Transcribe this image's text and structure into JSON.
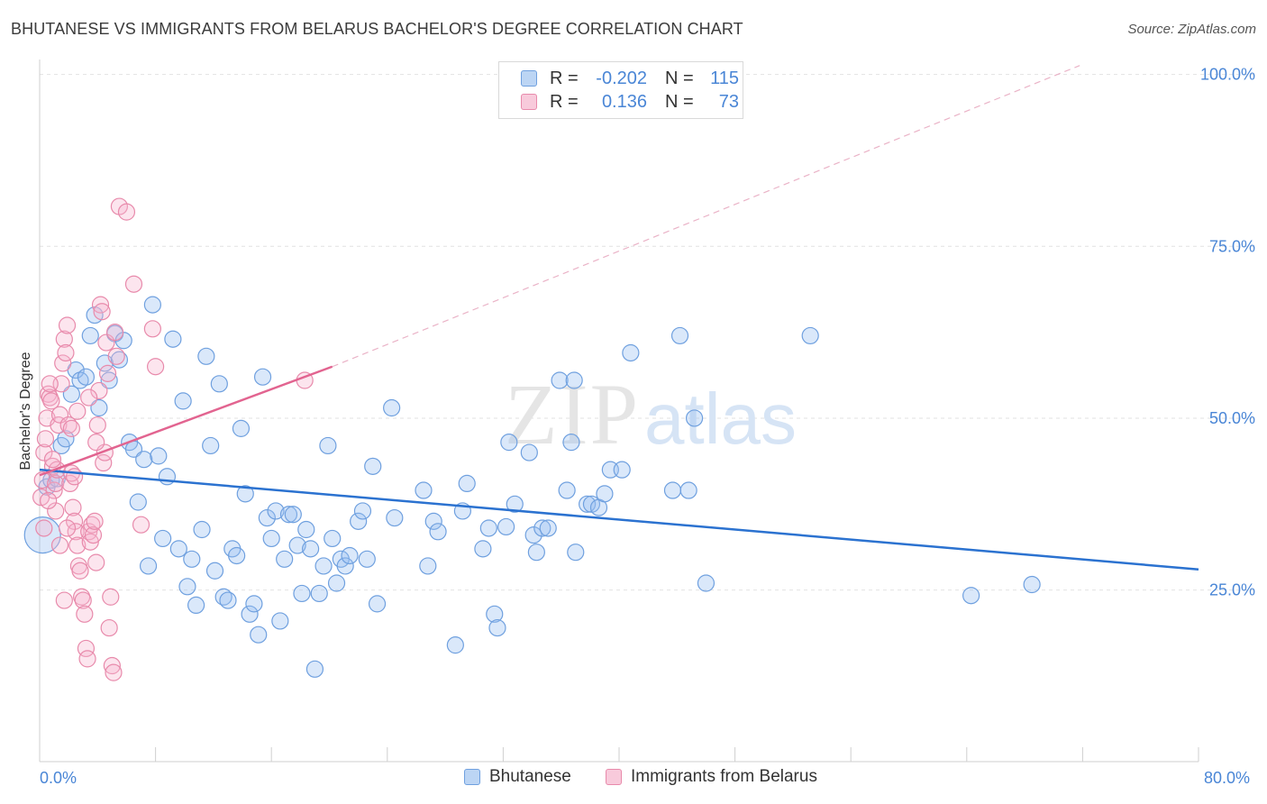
{
  "title": "BHUTANESE VS IMMIGRANTS FROM BELARUS BACHELOR'S DEGREE CORRELATION CHART",
  "source": "Source: ZipAtlas.com",
  "watermark": {
    "zip": "ZIP",
    "atlas": "atlas"
  },
  "legend": {
    "rows": [
      {
        "r_label": "R =",
        "r_value": "-0.202",
        "n_label": "N =",
        "n_value": "115",
        "color": "#a9c8f0",
        "border": "#6fa0df"
      },
      {
        "r_label": "R =",
        "r_value": "0.136",
        "n_label": "N =",
        "n_value": "73",
        "color": "#f6bcd0",
        "border": "#e88aab"
      }
    ]
  },
  "bottom_legend": {
    "series1": "Bhutanese",
    "series2": "Immigrants from Belarus"
  },
  "x_axis": {
    "min_label": "0.0%",
    "max_label": "80.0%"
  },
  "chart_data": {
    "type": "scatter",
    "title": "BHUTANESE VS IMMIGRANTS FROM BELARUS BACHELOR'S DEGREE CORRELATION CHART",
    "xlabel": "",
    "ylabel": "Bachelor's Degree",
    "xlim": [
      0,
      80
    ],
    "ylim": [
      0,
      105
    ],
    "y_ticks": [
      25,
      50,
      75,
      100
    ],
    "y_tick_labels": [
      "25.0%",
      "50.0%",
      "75.0%",
      "100.0%"
    ],
    "x_tick_labels": [
      "0.0%",
      "80.0%"
    ],
    "grid": true,
    "series": [
      {
        "name": "Bhutanese",
        "color": "#6fa0df",
        "fill": "rgba(150,190,240,0.35)",
        "trend": {
          "x": [
            0,
            80
          ],
          "y": [
            42.5,
            28.0
          ],
          "style": "solid",
          "color": "#2b72d0"
        },
        "points": [
          [
            0.2,
            33
          ],
          [
            0.5,
            40
          ],
          [
            0.8,
            41
          ],
          [
            1.2,
            41.2
          ],
          [
            1.5,
            46
          ],
          [
            1.8,
            47
          ],
          [
            2.2,
            53.5
          ],
          [
            2.5,
            57
          ],
          [
            2.8,
            55.5
          ],
          [
            3.2,
            56
          ],
          [
            3.5,
            62
          ],
          [
            3.8,
            65
          ],
          [
            4.1,
            51.5
          ],
          [
            4.5,
            58
          ],
          [
            4.8,
            55.5
          ],
          [
            5.2,
            62.3
          ],
          [
            5.5,
            58.5
          ],
          [
            5.8,
            61.3
          ],
          [
            6.2,
            46.5
          ],
          [
            6.5,
            45.5
          ],
          [
            6.8,
            37.8
          ],
          [
            7.2,
            44
          ],
          [
            7.5,
            28.5
          ],
          [
            7.8,
            66.5
          ],
          [
            8.2,
            44.5
          ],
          [
            8.5,
            32.5
          ],
          [
            8.8,
            41.5
          ],
          [
            9.2,
            61.5
          ],
          [
            9.6,
            31
          ],
          [
            9.9,
            52.5
          ],
          [
            10.2,
            25.5
          ],
          [
            10.5,
            29.5
          ],
          [
            10.8,
            22.8
          ],
          [
            11.2,
            33.8
          ],
          [
            11.5,
            59
          ],
          [
            11.8,
            46
          ],
          [
            12.1,
            27.8
          ],
          [
            12.4,
            55
          ],
          [
            12.7,
            24
          ],
          [
            13.0,
            23.5
          ],
          [
            13.3,
            31
          ],
          [
            13.6,
            30
          ],
          [
            13.9,
            48.5
          ],
          [
            14.2,
            39
          ],
          [
            14.5,
            21.5
          ],
          [
            14.8,
            23
          ],
          [
            15.1,
            18.5
          ],
          [
            15.4,
            56
          ],
          [
            15.7,
            35.5
          ],
          [
            16.0,
            32.5
          ],
          [
            16.3,
            36.5
          ],
          [
            16.6,
            20.5
          ],
          [
            16.9,
            29.5
          ],
          [
            17.2,
            36
          ],
          [
            17.5,
            36
          ],
          [
            17.8,
            31.5
          ],
          [
            18.1,
            24.5
          ],
          [
            18.4,
            33.8
          ],
          [
            18.7,
            31
          ],
          [
            19.0,
            13.5
          ],
          [
            19.3,
            24.5
          ],
          [
            19.6,
            28.5
          ],
          [
            19.9,
            46
          ],
          [
            20.2,
            32.5
          ],
          [
            20.5,
            26
          ],
          [
            20.8,
            29.5
          ],
          [
            21.1,
            28.5
          ],
          [
            21.4,
            30
          ],
          [
            22.0,
            35
          ],
          [
            22.3,
            36.5
          ],
          [
            22.6,
            29.5
          ],
          [
            23.0,
            43
          ],
          [
            23.3,
            23
          ],
          [
            24.3,
            51.5
          ],
          [
            24.5,
            35.5
          ],
          [
            26.5,
            39.5
          ],
          [
            26.8,
            28.5
          ],
          [
            27.2,
            35
          ],
          [
            27.5,
            33.5
          ],
          [
            28.7,
            17
          ],
          [
            29.2,
            36.5
          ],
          [
            29.5,
            40.5
          ],
          [
            30.6,
            31
          ],
          [
            31.0,
            34
          ],
          [
            31.4,
            21.5
          ],
          [
            31.6,
            19.5
          ],
          [
            32.2,
            34.2
          ],
          [
            32.4,
            46.5
          ],
          [
            32.8,
            37.5
          ],
          [
            33.8,
            45
          ],
          [
            34.1,
            33
          ],
          [
            34.3,
            30.5
          ],
          [
            34.7,
            34
          ],
          [
            35.1,
            34
          ],
          [
            35.9,
            55.5
          ],
          [
            36.4,
            39.5
          ],
          [
            36.7,
            46.5
          ],
          [
            37.0,
            30.5
          ],
          [
            36.9,
            55.5
          ],
          [
            37.8,
            37.5
          ],
          [
            38.1,
            37.5
          ],
          [
            38.6,
            37
          ],
          [
            39.0,
            39
          ],
          [
            39.4,
            42.5
          ],
          [
            40.2,
            42.5
          ],
          [
            40.8,
            59.5
          ],
          [
            43.7,
            39.5
          ],
          [
            44.2,
            62
          ],
          [
            44.8,
            39.5
          ],
          [
            45.2,
            50
          ],
          [
            46.0,
            26
          ],
          [
            53.2,
            62
          ],
          [
            64.3,
            24.2
          ],
          [
            68.5,
            25.8
          ]
        ]
      },
      {
        "name": "Immigrants from Belarus",
        "color": "#e88aab",
        "fill": "rgba(246,180,205,0.35)",
        "trend": {
          "x": [
            0,
            20.2
          ],
          "y": [
            41.7,
            57.5
          ],
          "style": "solid",
          "color": "#e26490",
          "extension": {
            "x": [
              20.2,
              71.8
            ],
            "y": [
              57.5,
              101.3
            ],
            "style": "dashed"
          }
        },
        "points": [
          [
            0.1,
            38.5
          ],
          [
            0.2,
            41
          ],
          [
            0.3,
            45
          ],
          [
            0.4,
            47
          ],
          [
            0.5,
            50
          ],
          [
            0.6,
            53.5
          ],
          [
            0.7,
            53
          ],
          [
            0.8,
            52.5
          ],
          [
            0.9,
            43
          ],
          [
            1.0,
            39.5
          ],
          [
            1.1,
            40.5
          ],
          [
            1.1,
            36.5
          ],
          [
            1.2,
            42.5
          ],
          [
            1.3,
            49
          ],
          [
            1.4,
            50.5
          ],
          [
            1.5,
            55
          ],
          [
            1.6,
            58
          ],
          [
            1.7,
            61.5
          ],
          [
            1.8,
            59.5
          ],
          [
            1.9,
            63.5
          ],
          [
            2.0,
            49
          ],
          [
            2.1,
            40.5
          ],
          [
            2.2,
            42
          ],
          [
            2.3,
            37
          ],
          [
            2.4,
            35
          ],
          [
            2.5,
            33.5
          ],
          [
            2.6,
            31.5
          ],
          [
            2.7,
            28.5
          ],
          [
            2.8,
            27.8
          ],
          [
            2.9,
            24
          ],
          [
            3.0,
            23.5
          ],
          [
            3.1,
            21.5
          ],
          [
            3.2,
            16.5
          ],
          [
            3.3,
            15
          ],
          [
            3.4,
            33.5
          ],
          [
            3.5,
            32
          ],
          [
            3.6,
            34.5
          ],
          [
            3.7,
            33
          ],
          [
            3.8,
            35
          ],
          [
            3.9,
            29
          ],
          [
            4.0,
            49
          ],
          [
            4.1,
            54
          ],
          [
            4.2,
            66.5
          ],
          [
            4.3,
            65.5
          ],
          [
            4.4,
            43.5
          ],
          [
            4.5,
            45
          ],
          [
            4.6,
            61
          ],
          [
            4.7,
            56.5
          ],
          [
            4.8,
            19.5
          ],
          [
            4.9,
            24
          ],
          [
            5.0,
            14
          ],
          [
            5.1,
            13
          ],
          [
            5.2,
            62.5
          ],
          [
            5.3,
            59
          ],
          [
            5.5,
            80.8
          ],
          [
            6.0,
            80
          ],
          [
            6.5,
            69.5
          ],
          [
            7.0,
            34.5
          ],
          [
            7.8,
            63
          ],
          [
            8.0,
            57.5
          ],
          [
            18.3,
            55.5
          ],
          [
            0.6,
            38
          ],
          [
            0.9,
            44
          ],
          [
            1.4,
            31.5
          ],
          [
            1.7,
            23.5
          ],
          [
            2.2,
            48.5
          ],
          [
            2.6,
            51
          ],
          [
            3.4,
            53
          ],
          [
            3.9,
            46.5
          ],
          [
            0.3,
            34
          ],
          [
            0.7,
            55
          ],
          [
            1.9,
            34
          ],
          [
            2.4,
            41.5
          ]
        ]
      }
    ]
  }
}
